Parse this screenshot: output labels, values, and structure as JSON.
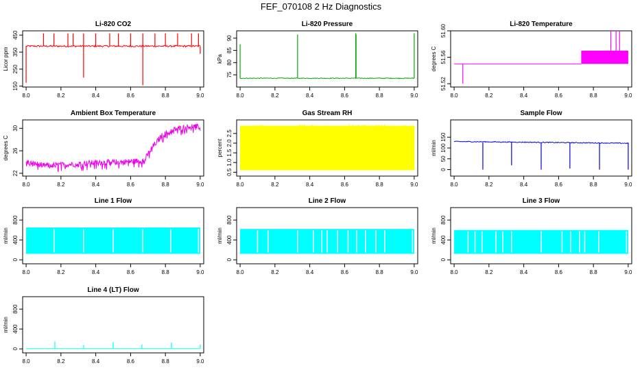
{
  "figure": {
    "title": "FEF_070108  2 Hz Diagnostics"
  },
  "chart_data": [
    {
      "id": "co2",
      "type": "line",
      "title": "Li-820 CO2",
      "ylabel": "Licor ppm",
      "color": "#ff0000",
      "xlim": [
        7.98,
        9.02
      ],
      "ylim": [
        145,
        475
      ],
      "xticks": [
        8.0,
        8.2,
        8.4,
        8.6,
        8.8,
        9.0
      ],
      "xticklabels": [
        "8.0",
        "8.2",
        "8.4",
        "8.6",
        "8.8",
        "9.0"
      ],
      "yticks": [
        150,
        250,
        350,
        450
      ],
      "yticklabels": [
        "150",
        "250",
        "350",
        "450"
      ],
      "series": [
        {
          "name": "CO2",
          "baseline": 385,
          "noise": 10,
          "spikes": [
            [
              8.1,
              460
            ],
            [
              8.16,
              460
            ],
            [
              8.24,
              460
            ],
            [
              8.27,
              460
            ],
            [
              8.33,
              460
            ],
            [
              8.4,
              460
            ],
            [
              8.48,
              460
            ],
            [
              8.53,
              460
            ],
            [
              8.6,
              460
            ],
            [
              8.67,
              460
            ],
            [
              8.74,
              460
            ],
            [
              8.8,
              460
            ],
            [
              8.87,
              460
            ],
            [
              8.95,
              460
            ],
            [
              8.99,
              460
            ],
            [
              8.0,
              170
            ],
            [
              8.33,
              200
            ],
            [
              8.67,
              155
            ],
            [
              9.0,
              340
            ]
          ]
        }
      ]
    },
    {
      "id": "pressure",
      "type": "line",
      "title": "Li-820 Pressure",
      "ylabel": "kPa",
      "color": "#00aa00",
      "xlim": [
        7.98,
        9.02
      ],
      "ylim": [
        70,
        93
      ],
      "xticks": [
        8.0,
        8.2,
        8.4,
        8.6,
        8.8,
        9.0
      ],
      "xticklabels": [
        "8.0",
        "8.2",
        "8.4",
        "8.6",
        "8.8",
        "9.0"
      ],
      "yticks": [
        75,
        80,
        85,
        90
      ],
      "yticklabels": [
        "75",
        "80",
        "85",
        "90"
      ],
      "series": [
        {
          "name": "Pressure",
          "baseline": 73.6,
          "noise": 0.3,
          "spikes": [
            [
              8.0,
              87.5
            ],
            [
              8.33,
              91.5
            ],
            [
              8.664,
              92
            ],
            [
              8.666,
              91.5
            ],
            [
              9.0,
              92
            ]
          ]
        }
      ]
    },
    {
      "id": "temperature",
      "type": "line",
      "title": "Li-820 Temperature",
      "ylabel": "degrees C",
      "color": "#ff00ff",
      "xlim": [
        7.98,
        9.02
      ],
      "ylim": [
        51.515,
        51.6
      ],
      "xticks": [
        8.0,
        8.2,
        8.4,
        8.6,
        8.8,
        9.0
      ],
      "xticklabels": [
        "8.0",
        "8.2",
        "8.4",
        "8.6",
        "8.8",
        "9.0"
      ],
      "yticks": [
        51.52,
        51.56,
        51.6
      ],
      "yticklabels": [
        "51.52",
        "51.56",
        "51.60"
      ],
      "series": [
        {
          "name": "Temperature",
          "baseline": 51.55,
          "band_start": 8.73,
          "band_low": 51.55,
          "band_high": 51.57,
          "spikes": [
            [
              8.05,
              51.52
            ],
            [
              8.9,
              51.6
            ],
            [
              8.93,
              51.6
            ],
            [
              8.95,
              51.6
            ]
          ]
        }
      ]
    },
    {
      "id": "ambient",
      "type": "line",
      "title": "Ambient Box Temperature",
      "ylabel": "degrees C",
      "color": "#ee00ee",
      "xlim": [
        7.98,
        9.02
      ],
      "ylim": [
        21.5,
        31.5
      ],
      "xticks": [
        8.0,
        8.2,
        8.4,
        8.6,
        8.8,
        9.0
      ],
      "xticklabels": [
        "8.0",
        "8.2",
        "8.4",
        "8.6",
        "8.8",
        "9.0"
      ],
      "yticks": [
        22,
        26,
        30
      ],
      "yticklabels": [
        "22",
        "26",
        "30"
      ],
      "series": [
        {
          "name": "Ambient",
          "points": [
            [
              8.0,
              24
            ],
            [
              8.1,
              23.4
            ],
            [
              8.2,
              23.5
            ],
            [
              8.3,
              23.7
            ],
            [
              8.4,
              23.9
            ],
            [
              8.5,
              24
            ],
            [
              8.6,
              24.1
            ],
            [
              8.68,
              24.3
            ],
            [
              8.72,
              26.5
            ],
            [
              8.78,
              28.7
            ],
            [
              8.85,
              29.8
            ],
            [
              8.95,
              30.4
            ],
            [
              9.0,
              30.2
            ]
          ],
          "noise": 0.5
        }
      ]
    },
    {
      "id": "rh",
      "type": "line",
      "title": "Gas Stream RH",
      "ylabel": "percent",
      "color": "#ffff00",
      "xlim": [
        7.98,
        9.02
      ],
      "ylim": [
        0.3,
        3.2
      ],
      "xticks": [
        8.0,
        8.2,
        8.4,
        8.6,
        8.8,
        9.0
      ],
      "xticklabels": [
        "8.0",
        "8.2",
        "8.4",
        "8.6",
        "8.8",
        "9.0"
      ],
      "yticks": [
        0.5,
        1.0,
        1.5,
        2.0,
        2.5
      ],
      "yticklabels": [
        "0.5",
        "1.0",
        "1.5",
        "2.0",
        "2.5"
      ],
      "series": [
        {
          "name": "RH",
          "band_low": 0.6,
          "band_high": 2.9
        }
      ]
    },
    {
      "id": "sample",
      "type": "line",
      "title": "Sample Flow",
      "ylabel": "ml/min",
      "color": "#0000dd",
      "xlim": [
        7.98,
        9.02
      ],
      "ylim": [
        -30,
        230
      ],
      "xticks": [
        8.0,
        8.2,
        8.4,
        8.6,
        8.8,
        9.0
      ],
      "xticklabels": [
        "8.0",
        "8.2",
        "8.4",
        "8.6",
        "8.8",
        "9.0"
      ],
      "yticks": [
        0,
        50,
        100,
        150
      ],
      "yticklabels": [
        "0",
        "50",
        "100",
        "150"
      ],
      "series": [
        {
          "name": "Sample",
          "baseline_start": 130,
          "baseline_end": 122,
          "noise": 2,
          "dips": [
            [
              8.165,
              0
            ],
            [
              8.33,
              20
            ],
            [
              8.5,
              0
            ],
            [
              8.665,
              5
            ],
            [
              8.835,
              0
            ],
            [
              9.0,
              0
            ]
          ]
        }
      ]
    },
    {
      "id": "line1",
      "type": "line",
      "title": "Line 1 Flow",
      "ylabel": "ml/min",
      "color": "#00ffff",
      "xlim": [
        7.98,
        9.02
      ],
      "ylim": [
        -80,
        1050
      ],
      "xticks": [
        8.0,
        8.2,
        8.4,
        8.6,
        8.8,
        9.0
      ],
      "xticklabels": [
        "8.0",
        "8.2",
        "8.4",
        "8.6",
        "8.8",
        "9.0"
      ],
      "yticks": [
        0,
        400,
        800
      ],
      "yticklabels": [
        "0",
        "400",
        "800"
      ],
      "series": [
        {
          "name": "Line 1",
          "band_low": 120,
          "band_high": 650,
          "gaps": [
            8.16,
            8.33,
            8.5,
            8.67,
            8.83,
            8.99
          ]
        }
      ]
    },
    {
      "id": "line2",
      "type": "line",
      "title": "Line 2 Flow",
      "ylabel": "ml/min",
      "color": "#00ffff",
      "xlim": [
        7.98,
        9.02
      ],
      "ylim": [
        -80,
        1050
      ],
      "xticks": [
        8.0,
        8.2,
        8.4,
        8.6,
        8.8,
        9.0
      ],
      "xticklabels": [
        "8.0",
        "8.2",
        "8.4",
        "8.6",
        "8.8",
        "9.0"
      ],
      "yticks": [
        0,
        400,
        800
      ],
      "yticklabels": [
        "0",
        "400",
        "800"
      ],
      "series": [
        {
          "name": "Line 2",
          "band_low": 120,
          "band_high": 620,
          "gaps": [
            8.1,
            8.16,
            8.33,
            8.42,
            8.47,
            8.5,
            8.56,
            8.62,
            8.67,
            8.72,
            8.78,
            8.83,
            8.99
          ]
        }
      ]
    },
    {
      "id": "line3",
      "type": "line",
      "title": "Line 3 Flow",
      "ylabel": "ml/min",
      "color": "#00ffff",
      "xlim": [
        7.98,
        9.02
      ],
      "ylim": [
        -80,
        1050
      ],
      "xticks": [
        8.0,
        8.2,
        8.4,
        8.6,
        8.8,
        9.0
      ],
      "xticklabels": [
        "8.0",
        "8.2",
        "8.4",
        "8.6",
        "8.8",
        "9.0"
      ],
      "yticks": [
        0,
        400,
        800
      ],
      "yticklabels": [
        "0",
        "400",
        "800"
      ],
      "series": [
        {
          "name": "Line 3",
          "band_low": 120,
          "band_high": 600,
          "gaps": [
            8.08,
            8.12,
            8.16,
            8.24,
            8.28,
            8.33,
            8.5,
            8.62,
            8.67,
            8.72,
            8.75,
            8.83,
            8.99
          ]
        }
      ]
    },
    {
      "id": "line4",
      "type": "line",
      "title": "Line 4 (LT) Flow",
      "ylabel": "ml/min",
      "color": "#00ffff",
      "xlim": [
        7.98,
        9.02
      ],
      "ylim": [
        -80,
        1050
      ],
      "xticks": [
        8.0,
        8.2,
        8.4,
        8.6,
        8.8,
        9.0
      ],
      "xticklabels": [
        "8.0",
        "8.2",
        "8.4",
        "8.6",
        "8.8",
        "9.0"
      ],
      "yticks": [
        0,
        400,
        800
      ],
      "yticklabels": [
        "0",
        "400",
        "800"
      ],
      "series": [
        {
          "name": "Line 4",
          "baseline": 5,
          "spikes": [
            [
              8.165,
              150
            ],
            [
              8.33,
              80
            ],
            [
              8.5,
              140
            ],
            [
              8.665,
              90
            ],
            [
              8.835,
              130
            ],
            [
              9.0,
              90
            ]
          ]
        }
      ]
    }
  ]
}
